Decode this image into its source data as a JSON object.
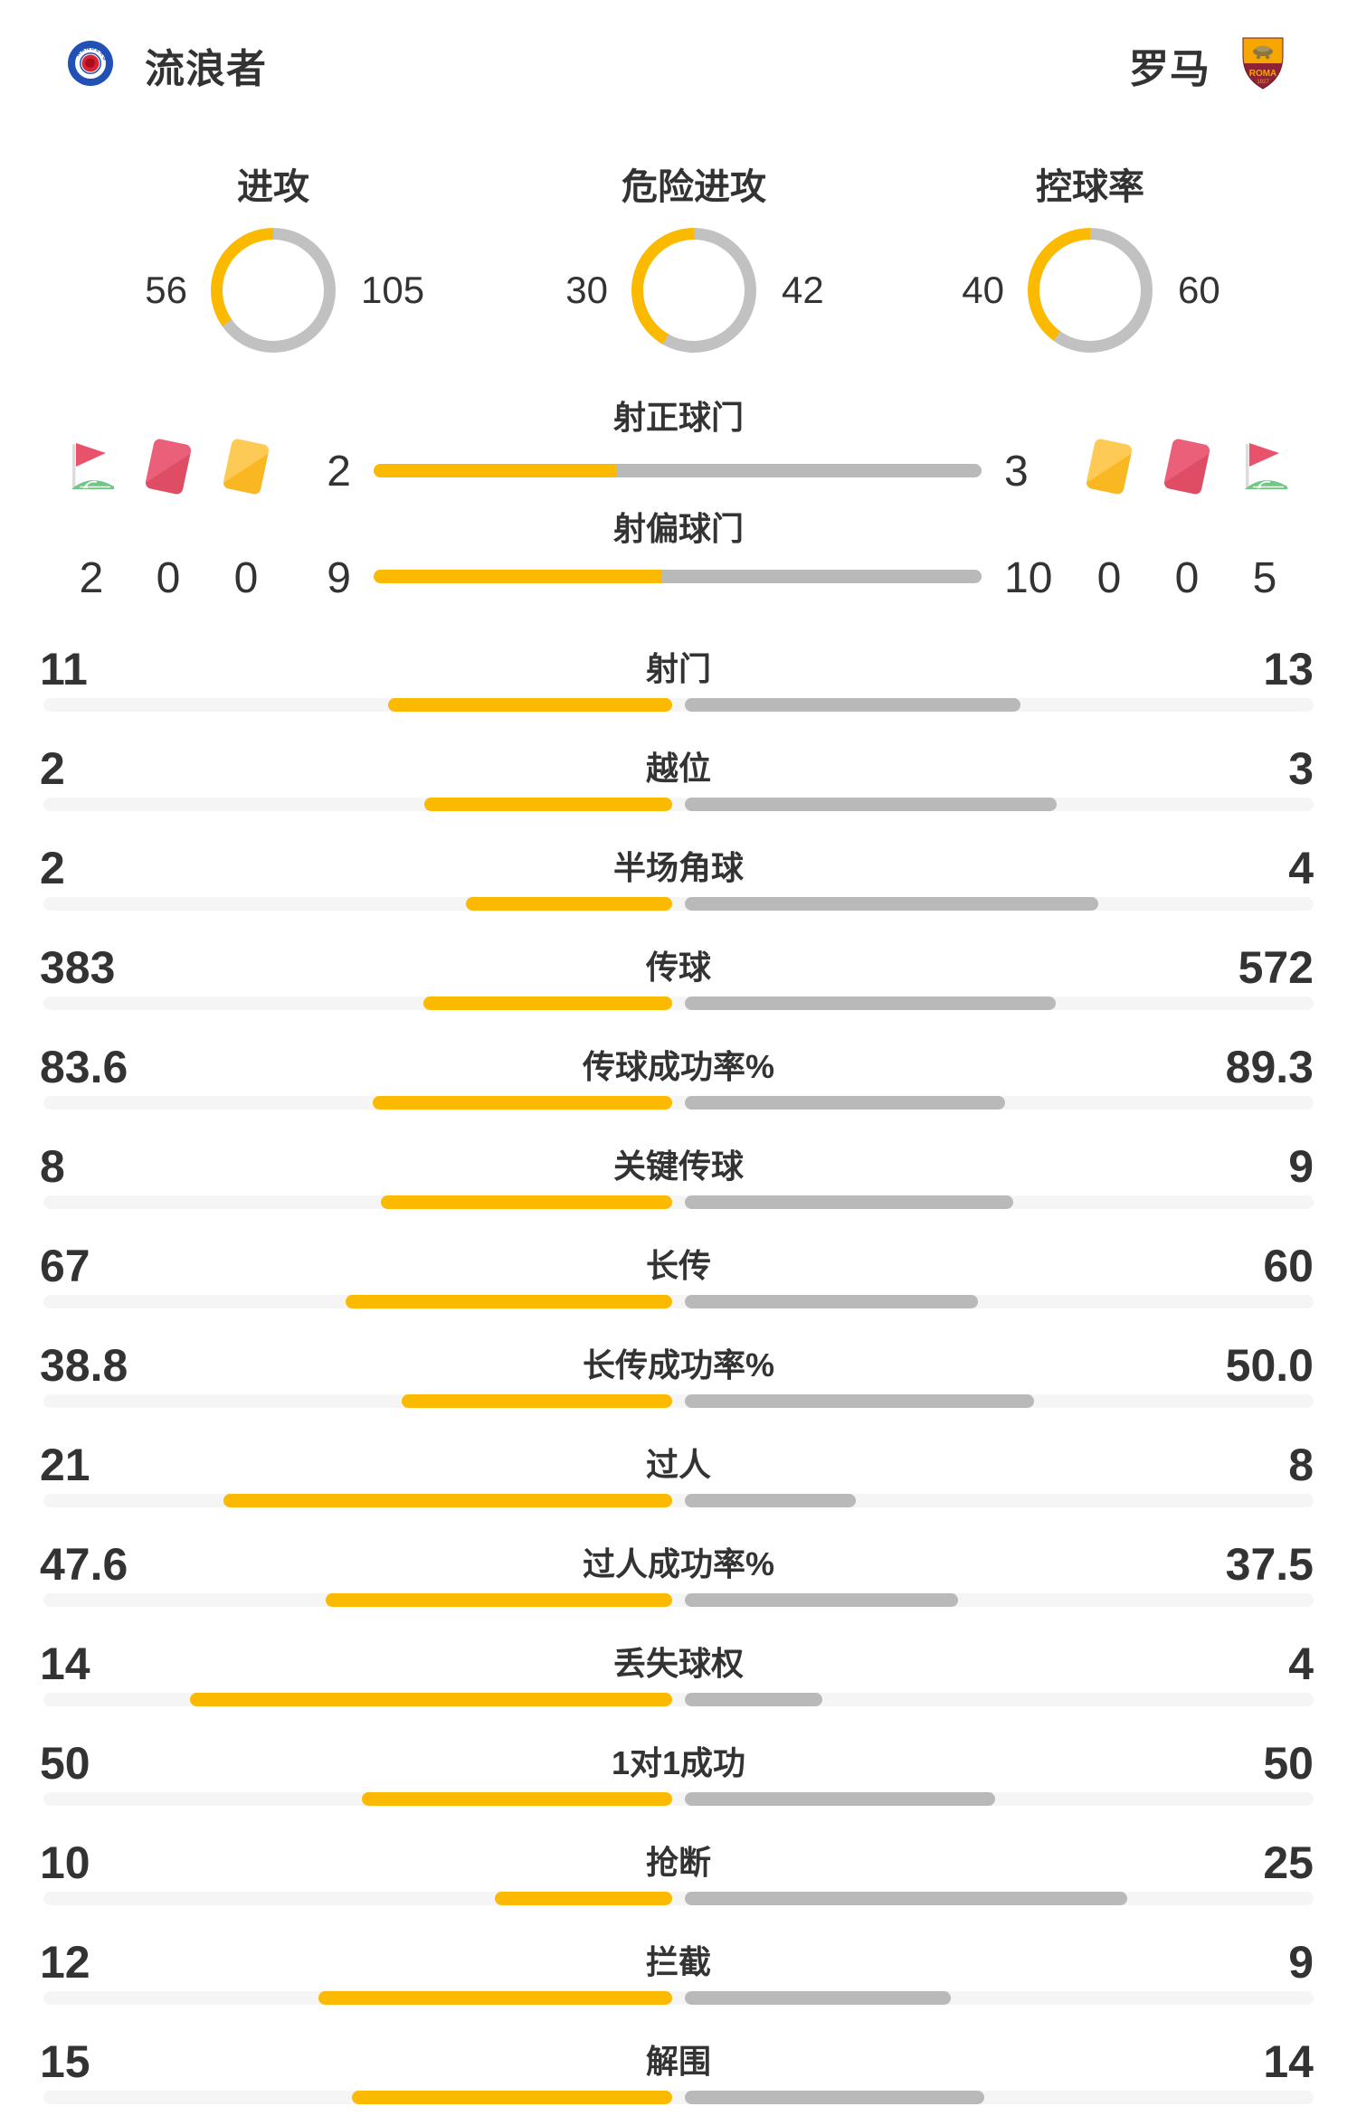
{
  "colors": {
    "yellow": "#FBBA00",
    "bar_gray": "#B9B9B9",
    "donut_gray": "#C1C1C1",
    "track": "#F5F5F5",
    "text": "#333333",
    "card_red_light": "#EA6078",
    "card_red_dark": "#DE4D63",
    "card_yellow_light": "#FDCA55",
    "card_yellow_dark": "#F9B822",
    "flag_red": "#E8526B",
    "flag_green": "#72C785",
    "flag_pole": "#DCDCDC",
    "rangers_blue": "#2151B5",
    "rangers_red": "#DA2332",
    "roma_gold": "#F7A600",
    "roma_maroon": "#8E2333"
  },
  "header": {
    "home": {
      "name": "流浪者",
      "logo": "rangers-crest-icon"
    },
    "away": {
      "name": "罗马",
      "logo": "roma-crest-icon"
    }
  },
  "donuts": [
    {
      "label": "进攻",
      "home": "56",
      "away": "105"
    },
    {
      "label": "危险进攻",
      "home": "30",
      "away": "42"
    },
    {
      "label": "控球率",
      "home": "40",
      "away": "60"
    }
  ],
  "discipline": {
    "home": {
      "icons": [
        "corner-flag-icon",
        "red-card-icon",
        "yellow-card-icon"
      ],
      "counts": [
        "2",
        "0",
        "0"
      ]
    },
    "away": {
      "icons": [
        "yellow-card-icon",
        "red-card-icon",
        "corner-flag-icon"
      ],
      "counts": [
        "0",
        "0",
        "5"
      ]
    }
  },
  "special_rows": [
    {
      "label": "射正球门",
      "home": "2",
      "away": "3"
    },
    {
      "label": "射偏球门",
      "home": "9",
      "away": "10"
    }
  ],
  "stat_rows": [
    {
      "label": "射门",
      "home": "11",
      "away": "13"
    },
    {
      "label": "越位",
      "home": "2",
      "away": "3"
    },
    {
      "label": "半场角球",
      "home": "2",
      "away": "4"
    },
    {
      "label": "传球",
      "home": "383",
      "away": "572"
    },
    {
      "label": "传球成功率%",
      "home": "83.6",
      "away": "89.3"
    },
    {
      "label": "关键传球",
      "home": "8",
      "away": "9"
    },
    {
      "label": "长传",
      "home": "67",
      "away": "60"
    },
    {
      "label": "长传成功率%",
      "home": "38.8",
      "away": "50.0"
    },
    {
      "label": "过人",
      "home": "21",
      "away": "8"
    },
    {
      "label": "过人成功率%",
      "home": "47.6",
      "away": "37.5"
    },
    {
      "label": "丢失球权",
      "home": "14",
      "away": "4"
    },
    {
      "label": "1对1成功",
      "home": "50",
      "away": "50"
    },
    {
      "label": "抢断",
      "home": "10",
      "away": "25"
    },
    {
      "label": "拦截",
      "home": "12",
      "away": "9"
    },
    {
      "label": "解围",
      "home": "15",
      "away": "14"
    }
  ]
}
